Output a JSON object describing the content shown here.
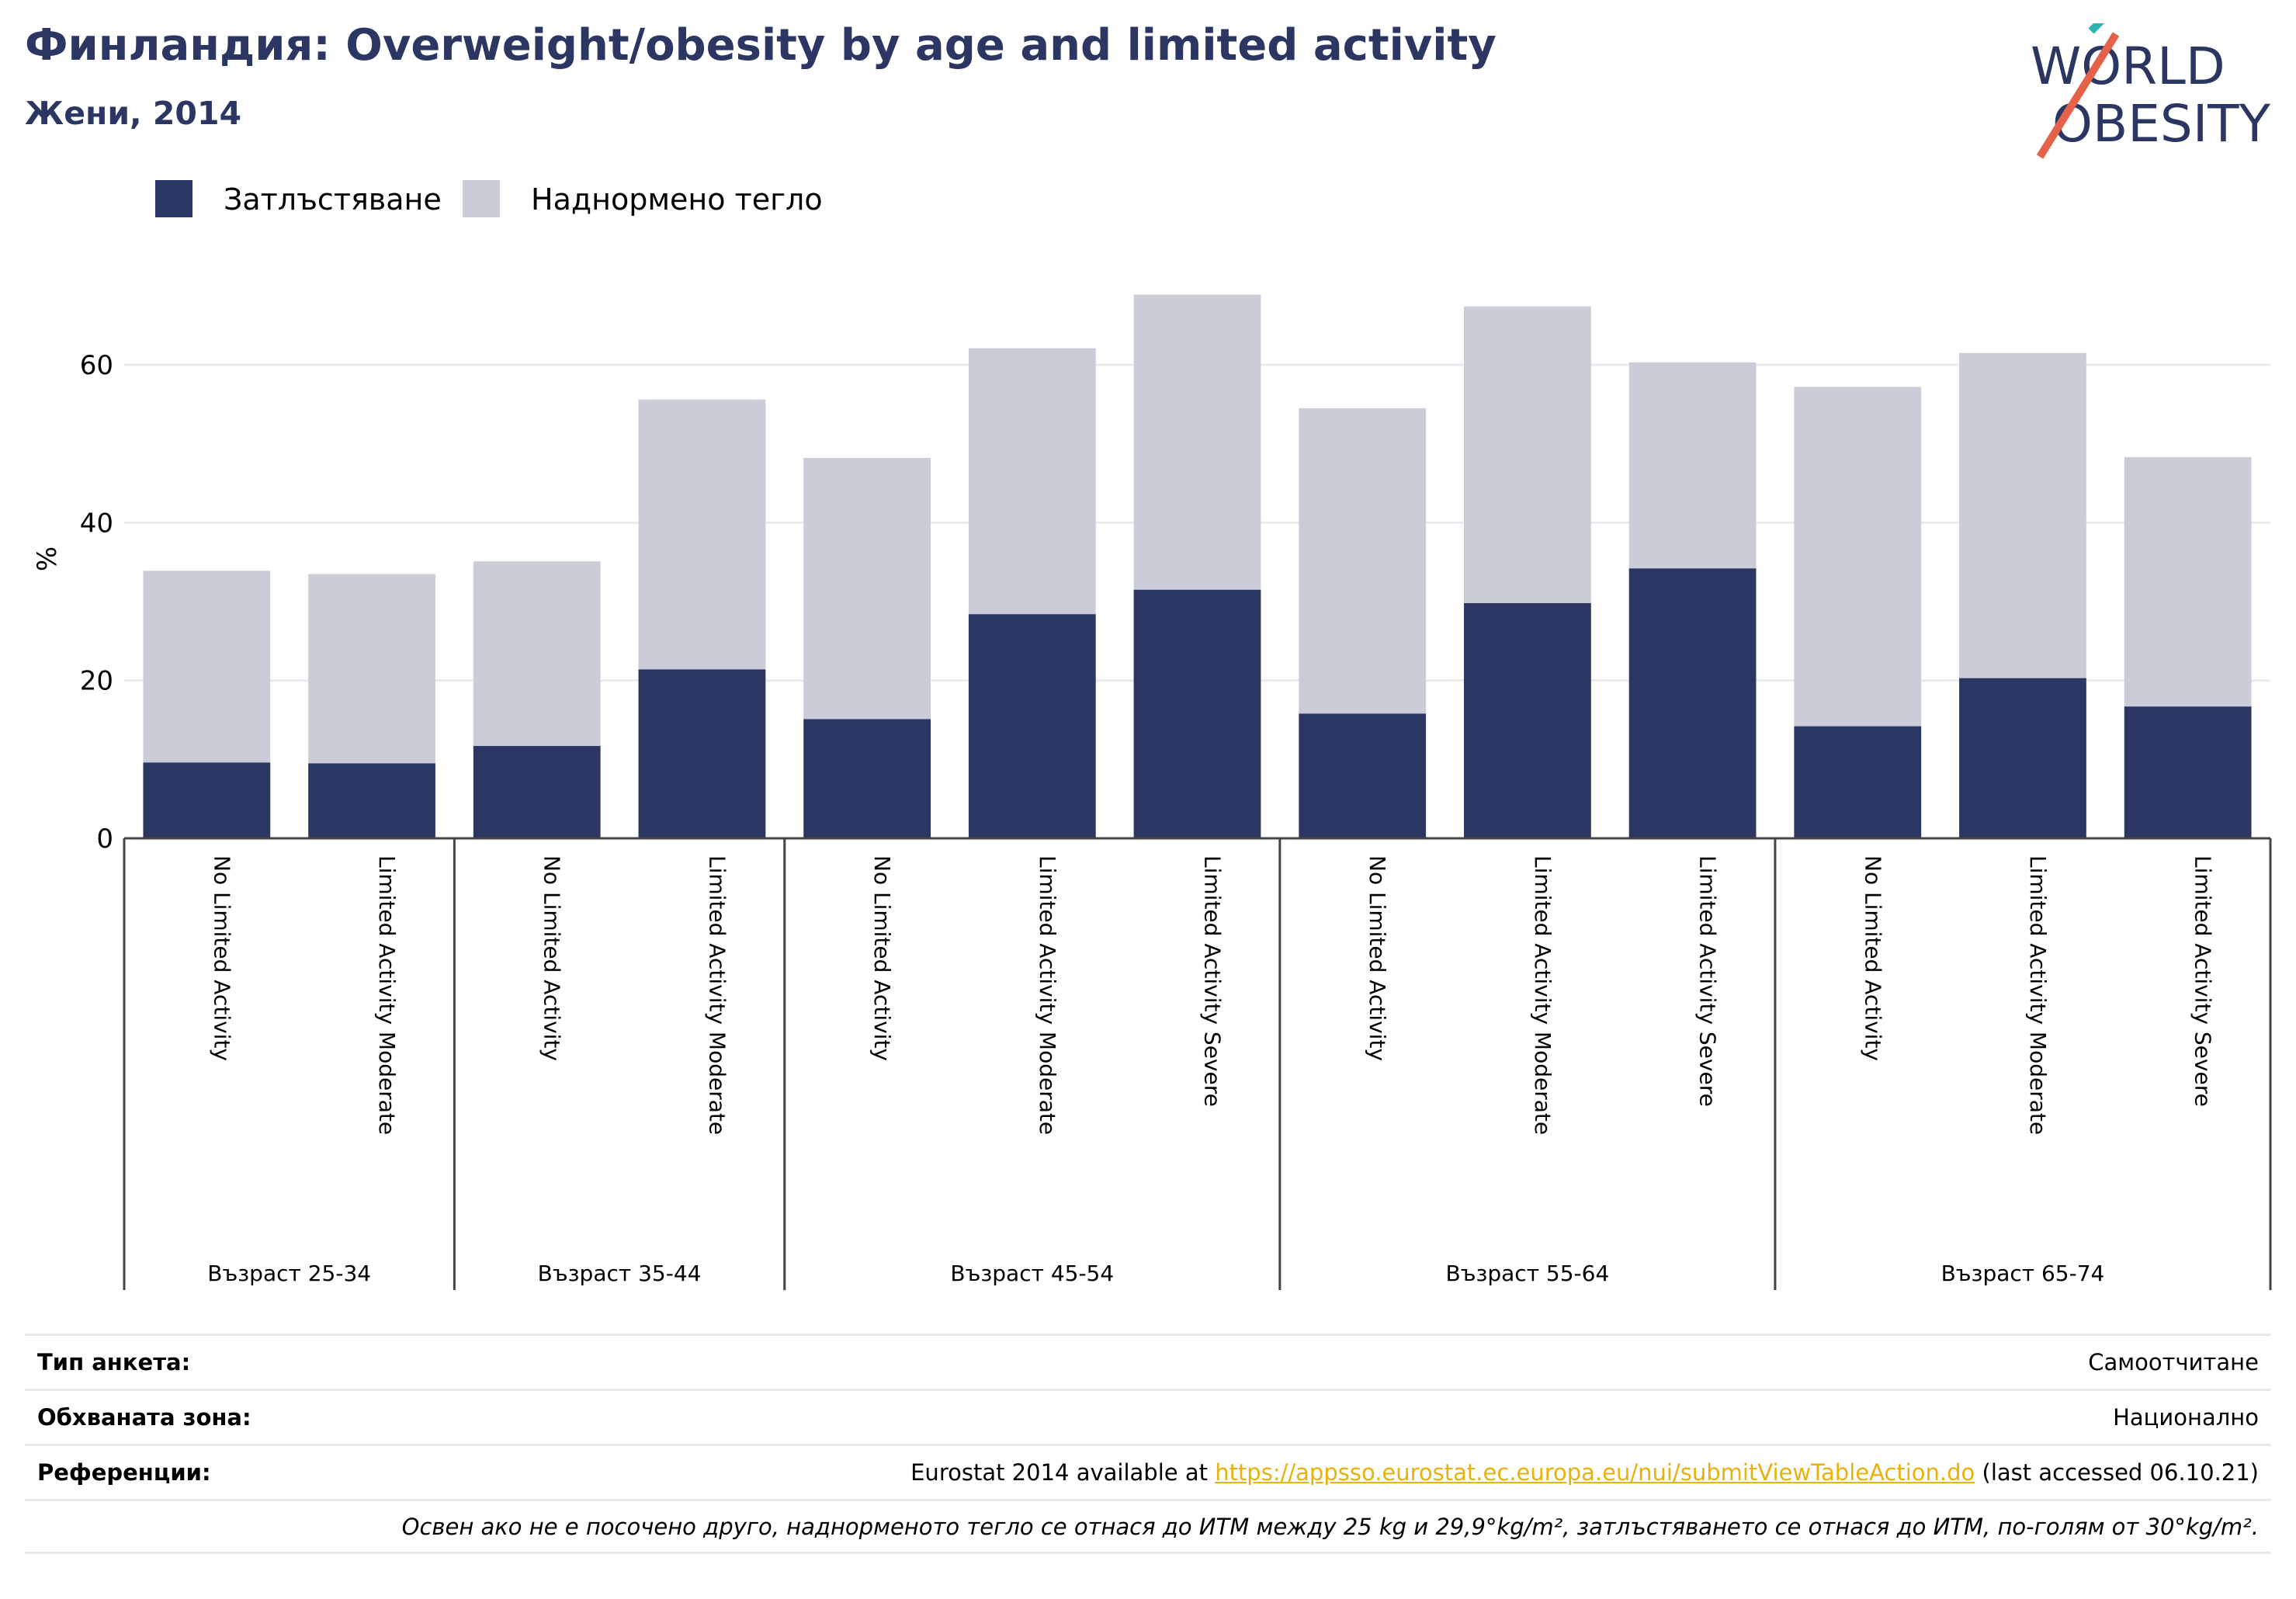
{
  "header": {
    "title": "Финландия: Overweight/obesity by age and limited activity",
    "subtitle": "Жени, 2014"
  },
  "logo": {
    "line1": "WORLD",
    "line2": "OBESITY"
  },
  "colors": {
    "obesity": "#2b3663",
    "overweight": "#caccd8",
    "accent_teal": "#2bb5b0",
    "accent_orange": "#e5624a",
    "link": "#e8b10b"
  },
  "chart_data": {
    "type": "bar",
    "stacked": true,
    "ylabel": "%",
    "ylim": [
      0,
      72
    ],
    "yticks": [
      0,
      20,
      40,
      60
    ],
    "grid": true,
    "legend_position": "top-left",
    "groups": [
      {
        "label": "Възраст 25-34",
        "categories": [
          "No Limited Activity",
          "Limited Activity Moderate"
        ]
      },
      {
        "label": "Възраст 35-44",
        "categories": [
          "No Limited Activity",
          "Limited Activity Moderate"
        ]
      },
      {
        "label": "Възраст 45-54",
        "categories": [
          "No Limited Activity",
          "Limited Activity Moderate",
          "Limited Activity Severe"
        ]
      },
      {
        "label": "Възраст 55-64",
        "categories": [
          "No Limited Activity",
          "Limited Activity Moderate",
          "Limited Activity Severe"
        ]
      },
      {
        "label": "Възраст 65-74",
        "categories": [
          "No Limited Activity",
          "Limited Activity Moderate",
          "Limited Activity Severe"
        ]
      }
    ],
    "series": [
      {
        "name": "Затлъстяване",
        "values": [
          9.6,
          9.5,
          11.7,
          21.4,
          15.1,
          28.4,
          31.5,
          15.8,
          29.8,
          34.2,
          14.2,
          20.3,
          16.7
        ]
      },
      {
        "name": "Наднормено тегло",
        "values": [
          24.3,
          24.0,
          23.4,
          34.2,
          33.1,
          33.7,
          37.4,
          38.7,
          37.6,
          26.1,
          43.0,
          41.2,
          31.6
        ]
      }
    ]
  },
  "info": {
    "survey_type_label": "Тип анкета:",
    "survey_type_value": "Самоотчитане",
    "coverage_label": "Обхваната зона:",
    "coverage_value": "Национално",
    "references_label": "Референции:",
    "references_prefix": "Eurostat 2014 available at ",
    "references_link": "https://appsso.eurostat.ec.europa.eu/nui/submitViewTableAction.do",
    "references_suffix": " (last accessed 06.10.21)",
    "note": "Освен ако не е посочено друго, наднорменото тегло се отнася до ИТМ между 25 kg и 29,9°kg/m², затлъстяването се отнася до ИТМ, по-голям от 30°kg/m²."
  }
}
